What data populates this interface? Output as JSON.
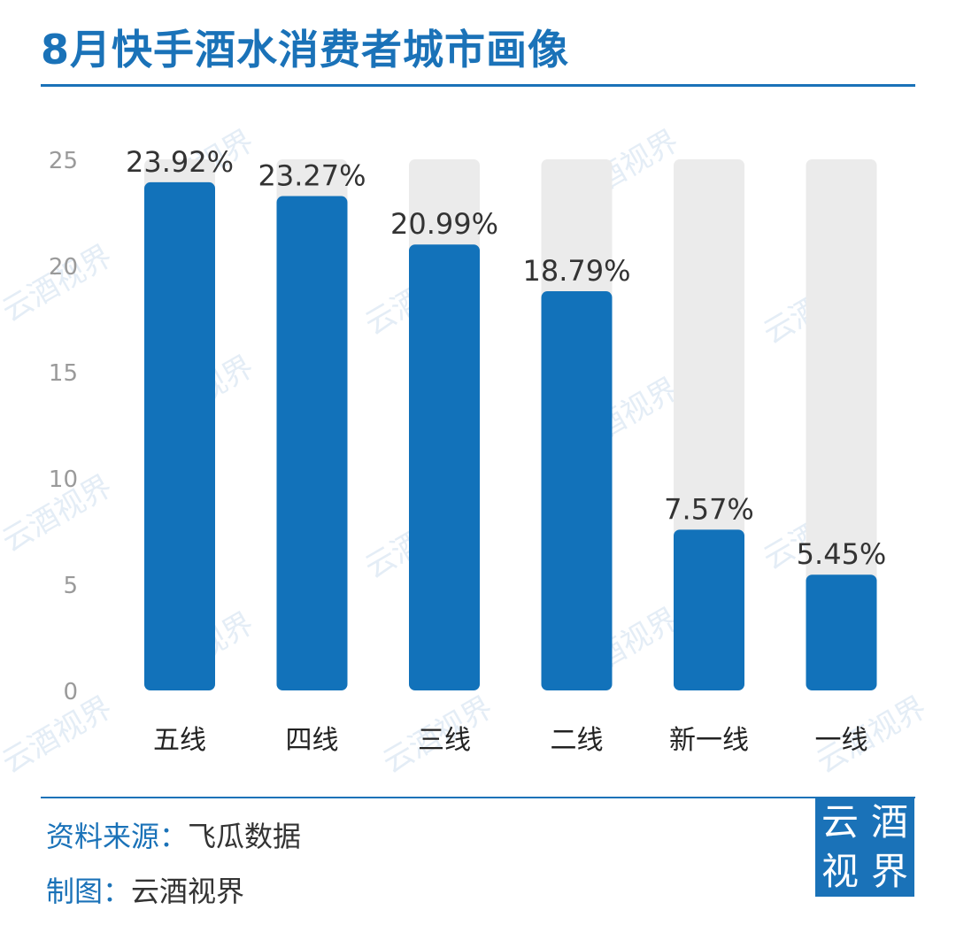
{
  "header": {
    "title": "8月快手酒水消费者城市画像"
  },
  "footer": {
    "source_label": "资料来源：",
    "source_value": "飞瓜数据",
    "author_label": "制图：",
    "author_value": "云酒视界"
  },
  "logo": {
    "chars": [
      "云",
      "酒",
      "视",
      "界"
    ]
  },
  "watermark": {
    "text": "云酒视界"
  },
  "colors": {
    "accent": "#1a72b8",
    "track": "#ebebeb",
    "bar": "#1272ba"
  },
  "chart_data": {
    "type": "bar",
    "title": "8月快手酒水消费者城市画像",
    "xlabel": "",
    "ylabel": "",
    "categories": [
      "五线",
      "四线",
      "三线",
      "二线",
      "新一线",
      "一线"
    ],
    "values": [
      23.92,
      23.27,
      20.99,
      18.79,
      7.57,
      5.45
    ],
    "value_labels": [
      "23.92%",
      "23.27%",
      "20.99%",
      "18.79%",
      "7.57%",
      "5.45%"
    ],
    "ylim": [
      0,
      25
    ],
    "yticks": [
      0,
      5,
      10,
      15,
      20,
      25
    ],
    "grid": false,
    "legend": "none"
  }
}
